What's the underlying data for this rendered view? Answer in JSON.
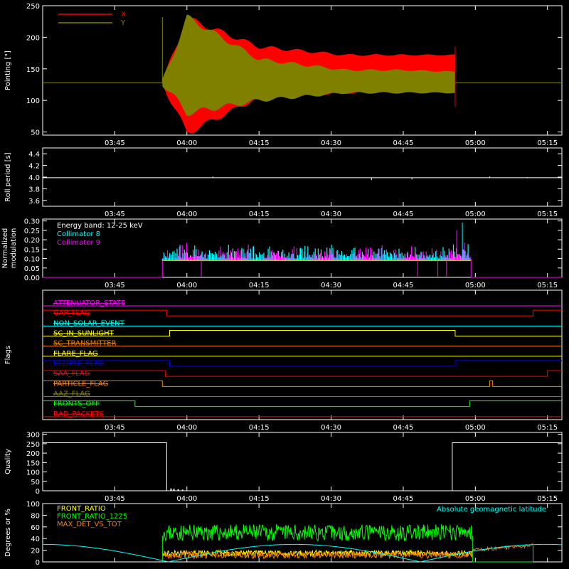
{
  "x_ticks": [
    "03:45",
    "04:00",
    "04:15",
    "04:30",
    "04:45",
    "05:00",
    "05:15"
  ],
  "chart_data": [
    {
      "type": "line",
      "id": "pointing",
      "ylabel": "Pointing [\"]",
      "yticks": [
        "50",
        "100",
        "150",
        "200",
        "250"
      ],
      "ylim": [
        45,
        250
      ],
      "legend_position": "top-left",
      "series": [
        {
          "name": "X",
          "color": "#ff0000",
          "baseline": 128,
          "envelope": [
            [
              3.9,
              128
            ],
            [
              4.0,
              230
            ],
            [
              4.25,
              185
            ],
            [
              4.55,
              172
            ],
            [
              4.75,
              172
            ],
            [
              4.95,
              172
            ]
          ],
          "low_envelope": [
            [
              3.9,
              128
            ],
            [
              4.0,
              48
            ],
            [
              4.25,
              105
            ],
            [
              4.55,
              112
            ],
            [
              4.75,
              115
            ],
            [
              4.95,
              115
            ]
          ]
        },
        {
          "name": "Y",
          "color": "#808000",
          "baseline": 128,
          "envelope": [
            [
              3.9,
              128
            ],
            [
              4.0,
              232
            ],
            [
              4.25,
              165
            ],
            [
              4.55,
              148
            ],
            [
              4.75,
              148
            ],
            [
              4.95,
              145
            ]
          ],
          "low_envelope": [
            [
              3.9,
              128
            ],
            [
              4.0,
              80
            ],
            [
              4.25,
              100
            ],
            [
              4.55,
              112
            ],
            [
              4.75,
              112
            ],
            [
              4.95,
              112
            ]
          ]
        }
      ]
    },
    {
      "type": "line",
      "id": "roll",
      "ylabel": "Roll period [s]",
      "yticks": [
        "3.6",
        "3.8",
        "4.0",
        "4.2",
        "4.4"
      ],
      "ylim": [
        3.5,
        4.5
      ],
      "series": [
        {
          "name": "",
          "color": "#ffffff",
          "value": 3.99
        }
      ]
    },
    {
      "type": "bar",
      "id": "modulation",
      "ylabel": "Normalized modulation",
      "yticks": [
        "0.00",
        "0.05",
        "0.10",
        "0.15",
        "0.20",
        "0.25",
        "0.30"
      ],
      "ylim": [
        0,
        0.31
      ],
      "annotation": "Energy band: 12-25 keV",
      "legend_position": "top-left",
      "series": [
        {
          "name": "Collimator 8",
          "color": "#00ffff",
          "base": 0.1
        },
        {
          "name": "Collimator 9",
          "color": "#ff00ff",
          "base": 0.1
        }
      ]
    },
    {
      "type": "line",
      "id": "flags",
      "ylabel": "Flags",
      "flags": [
        {
          "name": "ATTENUATOR_STATE",
          "color": "#ff00ff",
          "steps": []
        },
        {
          "name": "GAP_FLAG",
          "color": "#ff0000",
          "steps": [
            [
              3.85,
              1
            ],
            [
              3.93,
              0
            ],
            [
              5.2,
              1
            ]
          ]
        },
        {
          "name": "NON_SOLAR_EVENT",
          "color": "#00ffff",
          "steps": []
        },
        {
          "name": "SC_IN_SUNLIGHT",
          "color": "#ffff00",
          "steps": [
            [
              3.85,
              0
            ],
            [
              3.94,
              1
            ],
            [
              4.93,
              0
            ]
          ]
        },
        {
          "name": "SC_TRANSMITTER",
          "color": "#ff7f00",
          "steps": []
        },
        {
          "name": "FLARE_FLAG",
          "color": "#ffff00",
          "steps": []
        },
        {
          "name": "ECLIPSE_FLAG",
          "color": "#0000ff",
          "steps": [
            [
              3.85,
              1
            ],
            [
              3.94,
              0
            ],
            [
              4.93,
              1
            ]
          ]
        },
        {
          "name": "SAA_FLAG",
          "color": "#ff0000",
          "steps": [
            [
              3.85,
              1
            ],
            [
              3.925,
              0
            ],
            [
              5.25,
              1
            ]
          ]
        },
        {
          "name": "PARTICLE_FLAG",
          "color": "#ff7f00",
          "steps": [
            [
              3.85,
              1
            ],
            [
              3.915,
              0
            ],
            [
              5.05,
              1
            ],
            [
              5.06,
              0
            ]
          ]
        },
        {
          "name": "AAZ_FLAG",
          "color": "#808000",
          "steps": []
        },
        {
          "name": "FRONTS_OFF",
          "color": "#00ff00",
          "steps": [
            [
              3.85,
              1
            ],
            [
              3.82,
              0
            ],
            [
              4.98,
              1
            ]
          ]
        },
        {
          "name": "BAD_PACKETS",
          "color": "#ff0000",
          "steps": []
        }
      ]
    },
    {
      "type": "line",
      "id": "quality",
      "ylabel": "Quality",
      "yticks": [
        "0",
        "50",
        "100",
        "150",
        "200",
        "250",
        "300"
      ],
      "ylim": [
        0,
        310
      ],
      "series": [
        {
          "name": "",
          "color": "#ffffff",
          "levels": [
            [
              3.5,
              255
            ],
            [
              3.93,
              0
            ],
            [
              4.92,
              255
            ],
            [
              5.3,
              255
            ]
          ]
        }
      ]
    },
    {
      "type": "line",
      "id": "ratios",
      "ylabel": "Degrees or %",
      "yticks": [
        "0",
        "20",
        "40",
        "60",
        "80",
        "100"
      ],
      "ylim": [
        0,
        100
      ],
      "legend_position": "top-left",
      "annotation_right": "Absolute geomagnetic latitude",
      "series": [
        {
          "name": "FRONT_RATIO",
          "color": "#ffff00",
          "level": 15
        },
        {
          "name": "FRONT_RATIO_1225",
          "color": "#00ff00",
          "level": 50
        },
        {
          "name": "MAX_DET_VS_TOT",
          "color": "#ff7f00",
          "level": 12
        },
        {
          "name": "Absolute geomagnetic latitude",
          "color": "#00ffff",
          "level": 20
        }
      ]
    }
  ]
}
